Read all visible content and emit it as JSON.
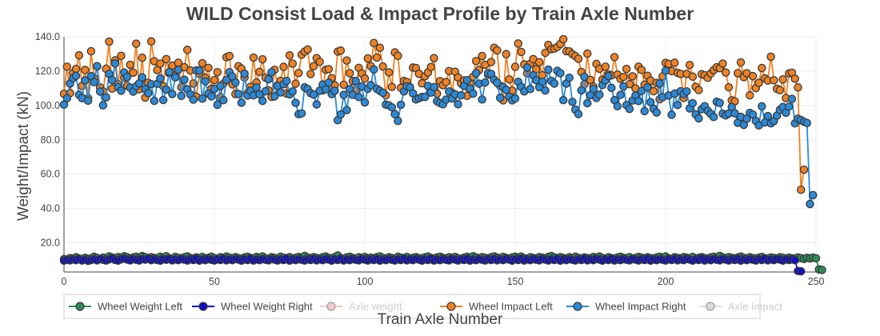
{
  "chart_data": {
    "type": "line",
    "title": "WILD Consist Load & Impact Profile by Train Axle Number",
    "xlabel": "Train Axle Number",
    "ylabel": "Weight/Impact (kN)",
    "xlim": [
      0,
      250
    ],
    "ylim": [
      3,
      140
    ],
    "x_ticks": [
      "0",
      "50",
      "100",
      "150",
      "200",
      "250"
    ],
    "y_ticks": [
      "20.0",
      "40.0",
      "60.0",
      "80.0",
      "100.0",
      "120.0",
      "140.0"
    ],
    "grid": true,
    "legend_position": "bottom",
    "x_start": 0,
    "x_step": 1,
    "series": [
      {
        "name": "Wheel Weight Left",
        "color": "#2e8b57",
        "visible": true,
        "values": [
          10.5,
          10.2,
          11.1,
          10.8,
          11.6,
          10.9,
          10.4,
          11.3,
          10.7,
          11.0,
          11.9,
          11.2,
          10.6,
          11.4,
          10.8,
          12.1,
          11.5,
          10.9,
          11.7,
          11.3,
          12.2,
          11.6,
          10.8,
          11.5,
          11.9,
          11.1,
          12.3,
          11.7,
          10.9,
          11.6,
          11.2,
          10.8,
          11.9,
          11.4,
          12.2,
          11.0,
          10.7,
          11.8,
          11.3,
          10.9,
          11.6,
          12.1,
          11.2,
          10.8,
          11.5,
          11.0,
          11.8,
          10.6,
          11.3,
          11.9,
          11.1,
          10.7,
          11.6,
          11.2,
          12.0,
          11.4,
          10.8,
          11.7,
          11.1,
          10.6,
          11.5,
          11.9,
          11.2,
          10.9,
          11.8,
          11.3,
          12.1,
          11.0,
          10.7,
          11.6,
          11.2,
          10.8,
          11.9,
          11.4,
          11.0,
          11.7,
          10.6,
          11.3,
          11.8,
          11.1,
          12.4,
          11.5,
          10.9,
          11.7,
          11.2,
          10.8,
          11.6,
          12.0,
          11.3,
          10.9,
          11.7,
          12.6,
          11.1,
          10.7,
          11.5,
          11.9,
          11.2,
          10.8,
          11.6,
          11.1,
          11.8,
          10.9,
          11.4,
          11.0,
          11.7,
          12.1,
          11.3,
          10.8,
          11.6,
          11.2,
          10.7,
          11.9,
          11.4,
          11.0,
          11.8,
          10.6,
          11.3,
          11.7,
          11.1,
          10.9,
          11.6,
          12.0,
          11.2,
          10.8,
          11.5,
          11.9,
          11.3,
          10.7,
          11.6,
          11.2,
          11.8,
          11.0,
          10.6,
          11.4,
          11.9,
          11.1,
          12.2,
          11.5,
          10.8,
          11.7,
          11.3,
          10.9,
          11.6,
          12.1,
          11.4,
          11.0,
          11.8,
          11.2,
          10.7,
          11.5,
          11.9,
          11.3,
          12.0,
          11.1,
          10.8,
          11.6,
          11.2,
          10.9,
          11.7,
          11.4,
          11.0,
          11.8,
          12.3,
          11.5,
          10.9,
          11.7,
          11.2,
          10.8,
          11.6,
          11.0,
          11.9,
          11.3,
          10.7,
          11.5,
          11.1,
          10.9,
          11.8,
          11.4,
          12.0,
          11.2,
          10.8,
          11.6,
          11.1,
          10.7,
          11.5,
          11.9,
          11.3,
          11.0,
          11.7,
          10.6,
          11.2,
          11.8,
          11.4,
          10.9,
          11.6,
          11.1,
          10.8,
          11.5,
          11.9,
          11.3,
          12.1,
          11.0,
          10.7,
          11.6,
          11.2,
          10.9,
          11.7,
          11.4,
          11.0,
          11.8,
          10.6,
          11.3,
          11.7,
          11.1,
          10.8,
          11.5,
          11.9,
          11.2,
          12.4,
          11.6,
          10.9,
          11.7,
          11.3,
          10.8,
          11.5,
          12.0,
          11.2,
          10.9,
          11.6,
          11.1,
          10.7,
          11.4,
          11.8,
          11.0,
          10.8,
          11.5,
          11.2,
          10.9,
          11.6,
          11.3,
          10.7,
          11.4,
          11.0,
          10.8,
          11.5,
          11.1,
          10.6,
          11.3,
          10.9,
          11.4,
          11.0,
          4.5,
          4.2
        ]
      },
      {
        "name": "Wheel Weight Right",
        "color": "#1010c8",
        "visible": true,
        "values": [
          9.6,
          10.1,
          9.8,
          10.3,
          9.9,
          10.5,
          9.7,
          10.2,
          9.5,
          10.0,
          10.4,
          9.8,
          10.6,
          10.1,
          9.7,
          10.3,
          10.8,
          10.0,
          9.6,
          10.4,
          10.9,
          10.2,
          9.8,
          10.5,
          10.1,
          9.7,
          10.6,
          10.2,
          10.9,
          9.9,
          10.4,
          10.0,
          9.6,
          10.5,
          10.1,
          10.7,
          9.8,
          10.3,
          9.9,
          10.6,
          10.2,
          9.7,
          10.4,
          10.0,
          10.8,
          9.6,
          10.3,
          9.9,
          10.5,
          10.1,
          9.7,
          10.4,
          10.0,
          10.7,
          9.8,
          10.3,
          9.9,
          10.6,
          10.2,
          9.6,
          10.4,
          10.0,
          10.8,
          9.7,
          10.3,
          9.9,
          10.5,
          10.1,
          9.8,
          10.6,
          10.2,
          9.7,
          10.4,
          10.0,
          10.9,
          9.6,
          10.3,
          9.9,
          10.5,
          10.1,
          9.7,
          10.4,
          10.0,
          10.7,
          9.8,
          10.3,
          9.9,
          10.6,
          10.2,
          9.6,
          10.4,
          10.0,
          10.8,
          9.7,
          10.3,
          9.9,
          10.5,
          10.1,
          9.8,
          10.6,
          10.2,
          9.7,
          10.4,
          10.0,
          10.7,
          9.6,
          10.3,
          9.9,
          10.5,
          10.1,
          9.7,
          10.4,
          10.0,
          10.8,
          9.8,
          10.3,
          9.9,
          10.6,
          10.2,
          9.6,
          10.4,
          10.0,
          10.7,
          9.7,
          10.3,
          9.9,
          10.5,
          10.1,
          9.8,
          10.6,
          10.2,
          9.7,
          10.4,
          10.0,
          10.8,
          9.6,
          10.3,
          9.9,
          10.5,
          10.1,
          9.7,
          10.4,
          10.0,
          10.7,
          9.8,
          10.3,
          9.9,
          10.6,
          10.2,
          9.6,
          10.4,
          10.0,
          10.8,
          9.7,
          10.3,
          9.9,
          10.5,
          10.1,
          9.8,
          10.6,
          10.2,
          9.7,
          10.4,
          10.0,
          10.7,
          9.6,
          10.3,
          9.9,
          10.5,
          10.1,
          9.7,
          10.4,
          10.0,
          10.8,
          9.8,
          10.3,
          9.9,
          10.6,
          10.2,
          9.6,
          10.4,
          10.0,
          10.7,
          9.7,
          10.3,
          9.9,
          10.5,
          10.1,
          9.8,
          10.6,
          10.2,
          9.7,
          10.4,
          10.0,
          10.8,
          9.6,
          10.3,
          9.9,
          10.5,
          10.1,
          9.7,
          10.4,
          10.0,
          10.7,
          9.8,
          10.3,
          9.9,
          10.6,
          10.2,
          9.6,
          10.4,
          10.0,
          10.8,
          9.7,
          10.3,
          9.9,
          10.5,
          10.1,
          9.8,
          10.6,
          10.2,
          9.7,
          10.4,
          10.0,
          10.7,
          9.6,
          10.3,
          9.9,
          10.5,
          10.1,
          9.7,
          10.4,
          10.0,
          10.8,
          9.8,
          10.3,
          9.9,
          10.6,
          10.2,
          9.6,
          10.4,
          10.0,
          10.3,
          9.9,
          3.6,
          3.4
        ]
      },
      {
        "name": "Axle weight",
        "color": "#e8939a",
        "visible": false,
        "values": []
      },
      {
        "name": "Wheel Impact Left",
        "color": "#f08224",
        "visible": true,
        "values": [
          106.8,
          122.6,
          107.2,
          118.9,
          121.3,
          129.2,
          111.4,
          120.7,
          104.3,
          131.6,
          115.9,
          122.8,
          110.5,
          108.2,
          121.4,
          137.2,
          109.8,
          126.3,
          112.4,
          128.9,
          116.2,
          111.5,
          123.7,
          119.1,
          136.0,
          109.4,
          127.8,
          104.6,
          113.2,
          137.3,
          125.8,
          120.6,
          124.4,
          111.2,
          127.0,
          118.8,
          123.2,
          117.5,
          124.9,
          110.6,
          122.3,
          132.4,
          120.4,
          112.8,
          105.1,
          118.5,
          124.6,
          116.1,
          121.9,
          109.7,
          114.8,
          119.4,
          104.7,
          112.7,
          128.1,
          128.8,
          112.3,
          106.6,
          122.9,
          121.4,
          116.3,
          107.2,
          110.9,
          127.9,
          113.4,
          119.6,
          126.9,
          116.2,
          108.8,
          105.0,
          120.8,
          111.7,
          114.3,
          122.5,
          106.9,
          129.2,
          124.4,
          112.7,
          118.9,
          129.6,
          131.4,
          132.6,
          118.3,
          122.9,
          127.6,
          125.4,
          108.8,
          120.8,
          121.2,
          115.9,
          111.7,
          131.4,
          132.0,
          112.1,
          126.2,
          118.8,
          114.2,
          108.9,
          121.9,
          118.6,
          115.7,
          127.4,
          122.9,
          136.4,
          127.9,
          133.6,
          122.7,
          105.9,
          119.3,
          110.8,
          130.9,
          128.9,
          110.3,
          114.3,
          113.7,
          110.7,
          122.1,
          121.8,
          118.5,
          112.9,
          117.0,
          119.2,
          122.4,
          127.6,
          106.9,
          114.2,
          111.8,
          113.6,
          120.1,
          107.4,
          119.7,
          116.3,
          112.8,
          114.6,
          105.6,
          113.2,
          116.7,
          125.9,
          120.6,
          128.8,
          123.7,
          117.9,
          125.3,
          133.6,
          132.1,
          111.4,
          103.0,
          129.9,
          115.2,
          108.6,
          122.5,
          136.1,
          131.2,
          123.9,
          118.7,
          124.3,
          127.0,
          121.1,
          125.2,
          117.6,
          130.7,
          135.3,
          132.8,
          133.1,
          134.1,
          135.8,
          138.6,
          131.6,
          131.5,
          129.9,
          128.8,
          127.2,
          119.5,
          112.3,
          130.2,
          114.9,
          110.9,
          124.2,
          121.4,
          115.0,
          122.6,
          118.1,
          117.5,
          128.2,
          118.0,
          115.5,
          116.6,
          121.3,
          112.4,
          117.0,
          109.9,
          122.6,
          120.7,
          112.1,
          117.3,
          114.5,
          108.3,
          113.2,
          103.6,
          116.9,
          124.8,
          124.2,
          120.0,
          124.9,
          119.0,
          118.4,
          104.4,
          118.4,
          123.6,
          116.8,
          110.9,
          109.0,
          118.2,
          117.6,
          116.1,
          118.6,
          120.6,
          122.3,
          121.7,
          124.4,
          119.2,
          110.6,
          103.0,
          102.4,
          118.8,
          125.1,
          116.5,
          118.8,
          105.9,
          117.1,
          110.1,
          113.2,
          121.8,
          115.8,
          114.5,
          128.4,
          114.7,
          109.7,
          108.9,
          115.2,
          104.3,
          118.7,
          119.1,
          115.6,
          110.5,
          50.9,
          62.6
        ]
      },
      {
        "name": "Wheel Impact Right",
        "color": "#2b8ad8",
        "visible": true,
        "values": [
          100.5,
          104.2,
          112.8,
          115.9,
          117.3,
          106.2,
          104.3,
          114.6,
          102.8,
          117.1,
          113.6,
          122.9,
          108.1,
          100.1,
          104.7,
          118.4,
          114.8,
          124.5,
          110.7,
          108.6,
          119.2,
          116.6,
          110.4,
          108.1,
          111.2,
          112.9,
          116.4,
          109.5,
          107.2,
          112.4,
          102.7,
          112.6,
          115.8,
          103.2,
          109.3,
          119.5,
          106.6,
          116.4,
          120.8,
          105.6,
          115.0,
          109.4,
          106.4,
          103.4,
          120.4,
          120.4,
          104.0,
          114.1,
          106.9,
          105.3,
          109.7,
          100.4,
          111.3,
          103.1,
          114.9,
          119.4,
          116.9,
          113.4,
          106.7,
          101.6,
          118.5,
          105.8,
          108.6,
          105.9,
          110.5,
          106.5,
          102.7,
          108.3,
          115.3,
          119.4,
          105.3,
          111.4,
          107.6,
          112.4,
          114.3,
          106.5,
          108.2,
          101.5,
          94.9,
          95.4,
          110.6,
          109.6,
          107.2,
          106.3,
          100.6,
          108.6,
          112.2,
          109.4,
          113.3,
          106.6,
          108.6,
          91.4,
          94.8,
          106.2,
          97.3,
          109.6,
          106.2,
          114.3,
          104.9,
          111.1,
          101.8,
          109.7,
          111.9,
          121.0,
          109.7,
          108.5,
          107.4,
          100.5,
          100.1,
          98.9,
          94.9,
          91.0,
          100.4,
          108.2,
          111.2,
          110.6,
          107.1,
          103.5,
          104.2,
          105.0,
          105.0,
          111.4,
          107.5,
          110.7,
          102.5,
          101.4,
          100.7,
          103.4,
          108.2,
          104.1,
          106.5,
          100.7,
          105.9,
          111.4,
          114.8,
          109.8,
          106.9,
          118.8,
          112.7,
          103.5,
          113.4,
          118.8,
          118.4,
          115.0,
          113.2,
          104.4,
          110.8,
          109.1,
          105.1,
          103.0,
          104.1,
          113.8,
          110.8,
          108.2,
          122.1,
          109.6,
          117.6,
          114.7,
          110.7,
          113.8,
          108.7,
          120.9,
          114.3,
          112.8,
          120.2,
          118.8,
          103.1,
          112.8,
          116.2,
          102.1,
          97.6,
          95.0,
          108.8,
          116.7,
          101.3,
          106.0,
          109.6,
          104.4,
          106.3,
          111.9,
          114.6,
          117.1,
          110.3,
          103.1,
          99.6,
          106.2,
          111.1,
          100.2,
          98.0,
          102.9,
          105.8,
          102.6,
          108.4,
          96.7,
          110.6,
          101.9,
          98.1,
          95.9,
          112.8,
          104.8,
          120.3,
          105.8,
          94.6,
          106.9,
          100.3,
          108.3,
          106.6,
          108.2,
          98.3,
          101.3,
          94.8,
          92.5,
          97.9,
          99.6,
          96.9,
          95.1,
          93.3,
          102.2,
          101.5,
          95.2,
          94.2,
          95.3,
          99.1,
          95.5,
          89.9,
          93.4,
          88.7,
          92.3,
          95.7,
          94.7,
          91.0,
          88.4,
          99.5,
          90.1,
          93.8,
          89.6,
          90.9,
          94.1,
          97.5,
          99.1,
          95.8,
          99.3,
          103.8,
          89.6,
          92.3,
          91.5,
          90.5,
          89.8,
          42.6,
          47.8
        ]
      },
      {
        "name": "Axle Impact",
        "color": "#bbbbbb",
        "visible": false,
        "values": []
      }
    ]
  }
}
